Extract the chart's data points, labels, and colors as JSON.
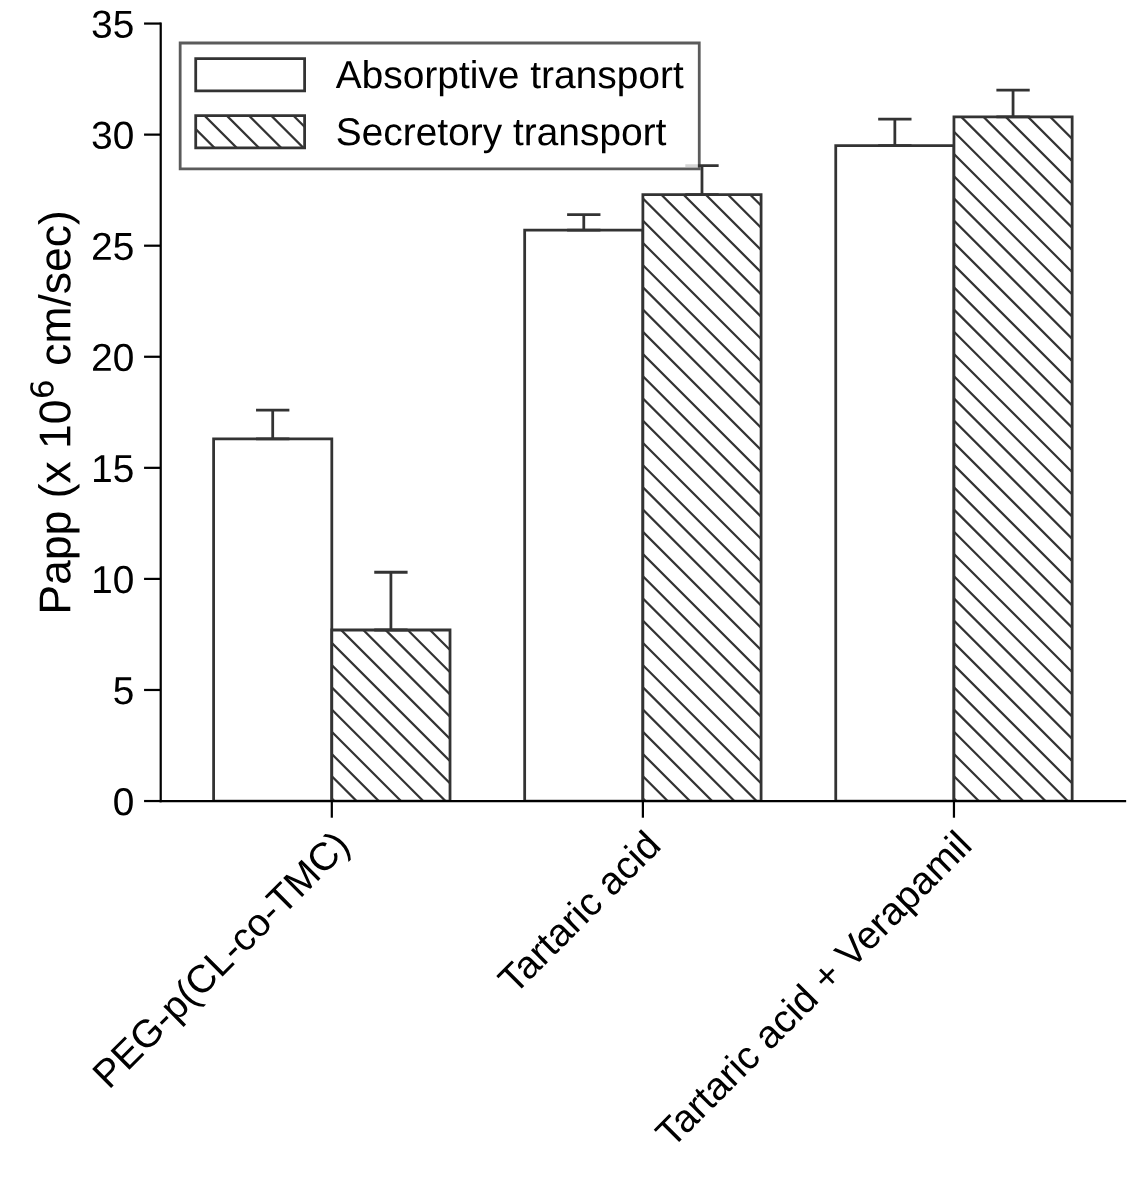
{
  "chart_data": {
    "type": "bar",
    "ylabel": "Papp (x 10$^{6}$ cm/sec)",
    "categories": [
      "PEG-p(CL-co-TMC)",
      "Tartaric acid",
      "Tartaric acid + Verapamil"
    ],
    "series": [
      {
        "name": "Absorptive transport",
        "color": "#ffffff",
        "values": [
          16.3,
          25.7,
          29.5
        ],
        "errors": [
          [
            16.3,
            17.6
          ],
          [
            25.7,
            26.4
          ],
          [
            29.5,
            30.7
          ]
        ]
      },
      {
        "name": "Secretory transport",
        "color": "#333333",
        "values": [
          7.7,
          27.3,
          30.8
        ],
        "errors": [
          [
            7.7,
            10.3
          ],
          [
            27.3,
            28.6
          ],
          [
            30.8,
            32.0
          ]
        ]
      }
    ],
    "ylim": [
      0,
      35
    ],
    "yticks": [
      0,
      5,
      10,
      15,
      20,
      25,
      30,
      35
    ],
    "grid": false,
    "legend": "top left"
  }
}
